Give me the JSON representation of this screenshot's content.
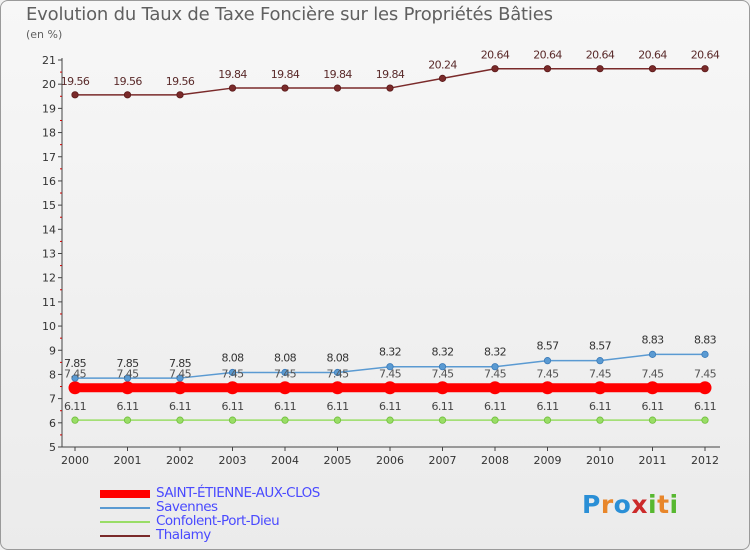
{
  "header": {
    "title": "Evolution du Taux de Taxe Foncière sur les Propriétés Bâties",
    "unit": "(en %)"
  },
  "branding": {
    "logo_text": "Proxiti",
    "logo_letters": [
      {
        "ch": "P",
        "color": "#2a8fd6"
      },
      {
        "ch": "r",
        "color": "#e8862a"
      },
      {
        "ch": "o",
        "color": "#2a8fd6"
      },
      {
        "ch": "x",
        "color": "#cc2a2a"
      },
      {
        "ch": "i",
        "color": "#57b830"
      },
      {
        "ch": "t",
        "color": "#e8862a"
      },
      {
        "ch": "i",
        "color": "#57b830"
      }
    ]
  },
  "chart_data": {
    "type": "line",
    "title": "Evolution du Taux de Taxe Foncière sur les Propriétés Bâties",
    "ylabel": "(en %)",
    "xlabel": "",
    "ylim": [
      5,
      21
    ],
    "yticks": [
      "5",
      "6",
      "7",
      "8",
      "9",
      "10",
      "11",
      "12",
      "13",
      "14",
      "15",
      "16",
      "17",
      "18",
      "19",
      "20",
      "21"
    ],
    "categories": [
      "2000",
      "2001",
      "2002",
      "2003",
      "2004",
      "2005",
      "2006",
      "2007",
      "2008",
      "2009",
      "2010",
      "2011",
      "2012"
    ],
    "series": [
      {
        "name": "SAINT-ÉTIENNE-AUX-CLOS",
        "color": "#ff0000",
        "width": 9,
        "values": [
          7.45,
          7.45,
          7.45,
          7.45,
          7.45,
          7.45,
          7.45,
          7.45,
          7.45,
          7.45,
          7.45,
          7.45,
          7.45
        ],
        "labels": [
          "7.45",
          "7.45",
          "7.45",
          "7.45",
          "7.45",
          "7.45",
          "7.45",
          "7.45",
          "7.45",
          "7.45",
          "7.45",
          "7.45",
          "7.45"
        ]
      },
      {
        "name": "Savennes",
        "color": "#5a9ad2",
        "width": 1.5,
        "values": [
          7.85,
          7.85,
          7.85,
          8.08,
          8.08,
          8.08,
          8.32,
          8.32,
          8.32,
          8.57,
          8.57,
          8.83,
          8.83
        ],
        "labels": [
          "7.85",
          "7.85",
          "7.85",
          "8.08",
          "8.08",
          "8.08",
          "8.32",
          "8.32",
          "8.32",
          "8.57",
          "8.57",
          "8.83",
          "8.83"
        ]
      },
      {
        "name": "Confolent-Port-Dieu",
        "color": "#99dd66",
        "width": 1.5,
        "values": [
          6.11,
          6.11,
          6.11,
          6.11,
          6.11,
          6.11,
          6.11,
          6.11,
          6.11,
          6.11,
          6.11,
          6.11,
          6.11
        ],
        "labels": [
          "6.11",
          "6.11",
          "6.11",
          "6.11",
          "6.11",
          "6.11",
          "6.11",
          "6.11",
          "6.11",
          "6.11",
          "6.11",
          "6.11",
          "6.11"
        ]
      },
      {
        "name": "Thalamy",
        "color": "#7a2a2a",
        "width": 1.5,
        "values": [
          19.56,
          19.56,
          19.56,
          19.84,
          19.84,
          19.84,
          19.84,
          20.24,
          20.64,
          20.64,
          20.64,
          20.64,
          20.64
        ],
        "labels": [
          "19.56",
          "19.56",
          "19.56",
          "19.84",
          "19.84",
          "19.84",
          "19.84",
          "20.24",
          "20.64",
          "20.64",
          "20.64",
          "20.64",
          "20.64"
        ]
      }
    ],
    "legend": [
      "SAINT-ÉTIENNE-AUX-CLOS",
      "Savennes",
      "Confolent-Port-Dieu",
      "Thalamy"
    ],
    "legend_position": "bottom-left",
    "grid": false
  }
}
